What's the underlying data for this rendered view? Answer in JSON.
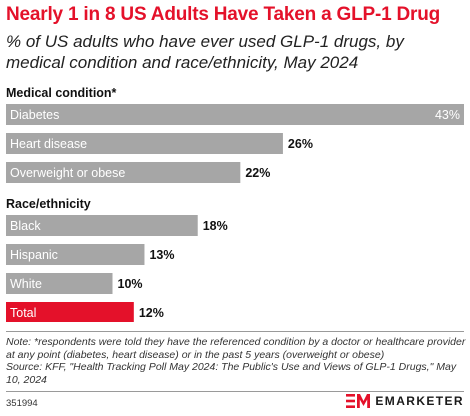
{
  "title": "Nearly 1 in 8 US Adults Have Taken a GLP-1 Drug",
  "subtitle": "% of US adults who have ever used GLP-1 drugs, by medical condition and race/ethnicity, May 2024",
  "chart_data": {
    "type": "bar",
    "orientation": "horizontal",
    "unit": "%",
    "xlim": [
      0,
      43
    ],
    "grid": false,
    "groups": [
      {
        "label": "Medical condition*",
        "categories": [
          "Diabetes",
          "Heart disease",
          "Overweight or obese"
        ],
        "values": [
          43,
          26,
          22
        ]
      },
      {
        "label": "Race/ethnicity",
        "categories": [
          "Black",
          "Hispanic",
          "White",
          "Total"
        ],
        "values": [
          18,
          13,
          10,
          12
        ]
      }
    ],
    "colors": {
      "bar": "#a6a6a6",
      "highlight": "#e4112a",
      "highlight_category": "Total"
    }
  },
  "note": "Note: *respondents were told they have the referenced condition by a doctor or healthcare provider at any point (diabetes, heart disease) or in the past 5 years (overweight or obese)",
  "source": "Source: KFF, \"Health Tracking Poll May 2024: The Public's Use and Views of GLP-1 Drugs,\" May 10, 2024",
  "chart_id": "351994",
  "brand": {
    "name": "EMARKETER",
    "logo_icon": "em-logo-icon",
    "color": "#e4112a"
  }
}
